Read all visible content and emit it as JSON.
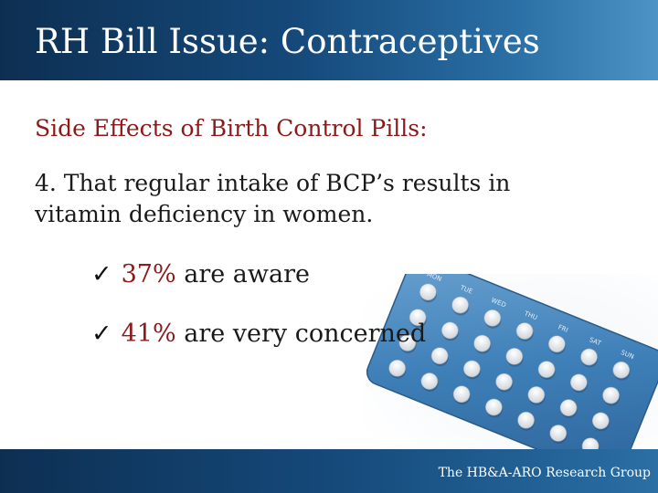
{
  "header": {
    "title": "RH Bill Issue: Contraceptives"
  },
  "content": {
    "subtitle": "Side Effects of Birth Control Pills:",
    "point": "4. That regular intake of BCP’s results in vitamin deficiency in women.",
    "bullets": [
      {
        "check": "✓",
        "percent": "37%",
        "text": " are aware"
      },
      {
        "check": "✓",
        "percent": "41%",
        "text": " are very concerned"
      }
    ]
  },
  "pill_pack": {
    "day_labels": [
      "MON",
      "TUE",
      "WED",
      "THU",
      "FRI",
      "SAT",
      "SUN"
    ]
  },
  "footer": {
    "credit": "The HB&A-ARO Research Group"
  },
  "colors": {
    "header_blue": "#15497a",
    "accent_red": "#8b1a1a",
    "pack_blue": "#3e7fb8"
  }
}
